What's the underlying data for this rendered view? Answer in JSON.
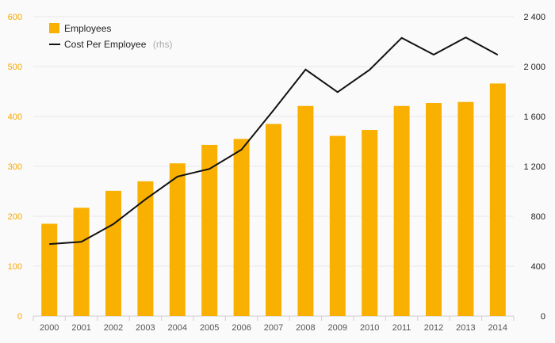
{
  "chart_data": {
    "type": "bar",
    "categories": [
      "2000",
      "2001",
      "2002",
      "2003",
      "2004",
      "2005",
      "2006",
      "2007",
      "2008",
      "2009",
      "2010",
      "2011",
      "2012",
      "2013",
      "2014"
    ],
    "series": [
      {
        "name": "Employees",
        "type": "bar",
        "axis": "left",
        "values": [
          185,
          217,
          251,
          270,
          306,
          343,
          355,
          385,
          421,
          361,
          373,
          421,
          427,
          429,
          466
        ]
      },
      {
        "name": "Cost Per Employee",
        "name_suffix": "(rhs)",
        "type": "line",
        "axis": "right",
        "values": [
          577,
          595,
          737,
          935,
          1118,
          1180,
          1334,
          1650,
          1976,
          1795,
          1974,
          2230,
          2095,
          2233,
          2094
        ]
      }
    ],
    "left_axis": {
      "ylim": [
        0,
        600
      ],
      "ticks": [
        "0",
        "100",
        "200",
        "300",
        "400",
        "500",
        "600"
      ]
    },
    "right_axis": {
      "ylim": [
        0,
        2400
      ],
      "ticks": [
        "0",
        "400",
        "800",
        "1 200",
        "1 600",
        "2 000",
        "2 400"
      ]
    },
    "grid": true,
    "legend": "top-left",
    "colors": {
      "bar": "#f9b000",
      "line": "#111111",
      "left_axis": "#f5a800"
    }
  }
}
